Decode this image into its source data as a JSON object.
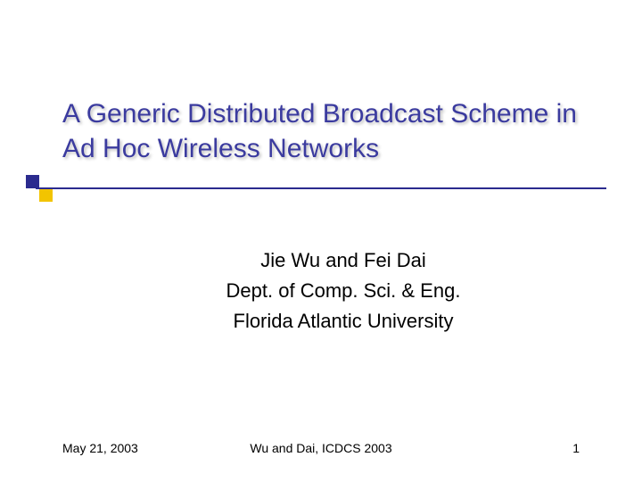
{
  "title": "A Generic Distributed Broadcast Scheme in Ad Hoc Wireless Networks",
  "title_color": "#3b3b9f",
  "authors": "Jie Wu and Fei Dai",
  "department": "Dept. of Comp. Sci. & Eng.",
  "university": "Florida Atlantic University",
  "content_color": "#000000",
  "footer": {
    "date": "May 21, 2003",
    "center": "Wu and Dai, ICDCS 2003",
    "page": "1",
    "color": "#000000"
  },
  "accent": {
    "square_blue": "#2b2b8e",
    "square_yellow": "#f2c400",
    "line_color": "#2b2b8e"
  },
  "background_color": "#ffffff"
}
